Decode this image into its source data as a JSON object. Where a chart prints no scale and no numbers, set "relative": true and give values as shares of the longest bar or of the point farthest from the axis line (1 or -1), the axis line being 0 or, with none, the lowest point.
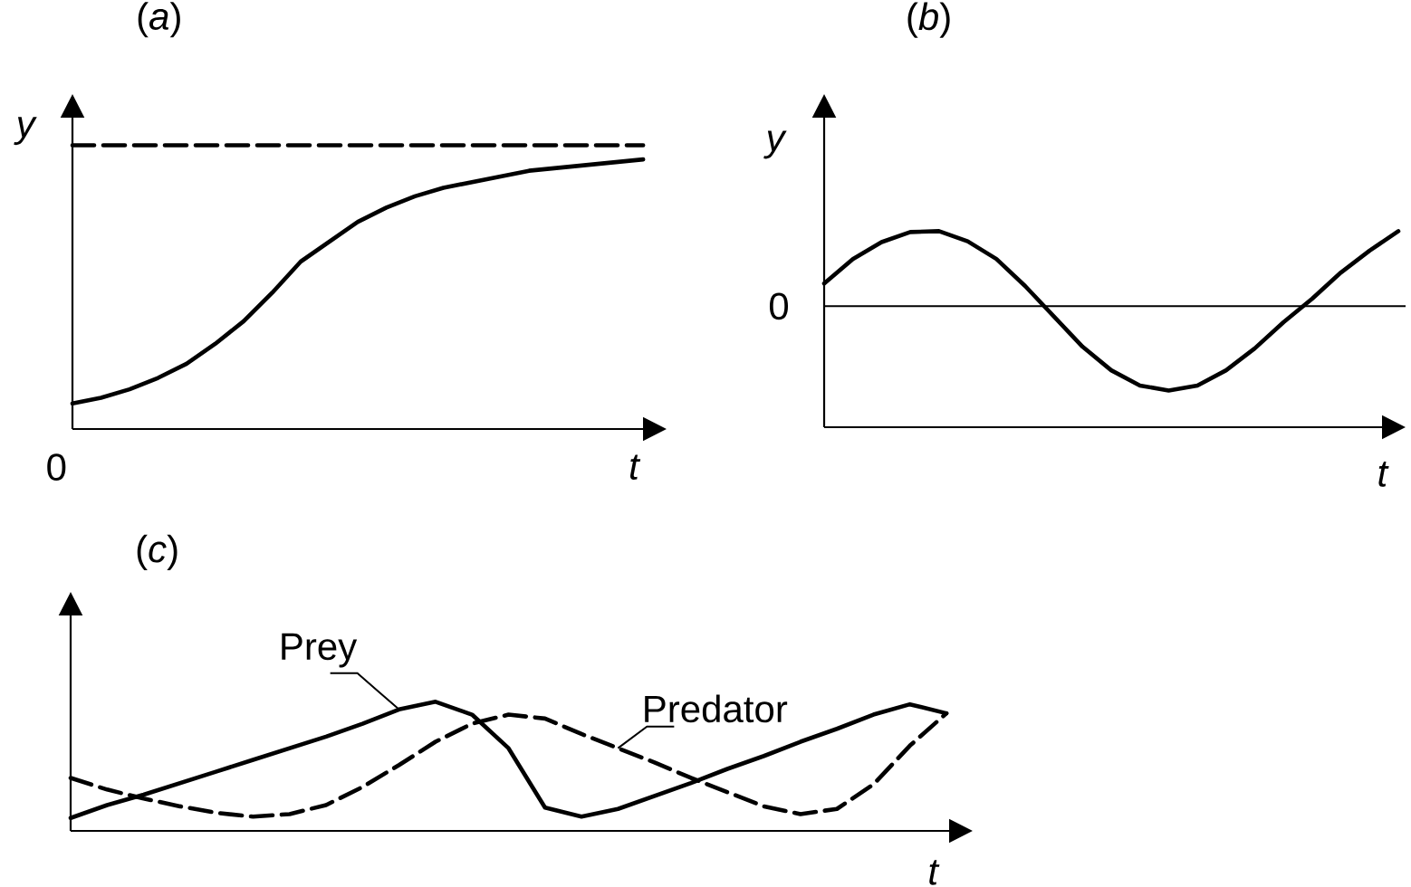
{
  "chart_data": [
    {
      "type": "line",
      "title": "(*a*)",
      "xlabel": "t",
      "ylabel": "y",
      "relative": true,
      "categories": [
        null,
        null,
        null,
        null,
        null,
        null,
        null,
        null,
        null,
        null,
        null,
        null,
        null,
        null,
        null,
        null,
        null,
        null,
        null,
        null,
        null
      ],
      "series": [
        {
          "color": "#000000",
          "line_style": "solid",
          "values": [
            0.09,
            0.11,
            0.14,
            0.18,
            0.23,
            0.3,
            0.38,
            0.48,
            0.59,
            0.66,
            0.73,
            0.78,
            0.82,
            0.85,
            0.87,
            0.89,
            0.91,
            0.92,
            0.93,
            0.94,
            0.95
          ]
        },
        {
          "color": "#000000",
          "line_style": "dashed",
          "values": [
            1,
            1,
            1,
            1,
            1,
            1,
            1,
            1,
            1,
            1,
            1,
            1,
            1,
            1,
            1,
            1,
            1,
            1,
            1,
            1,
            1
          ]
        }
      ],
      "annotations": [
        "0"
      ]
    },
    {
      "type": "line",
      "title": "(*b*)",
      "xlabel": "t",
      "ylabel": "y",
      "relative": true,
      "categories": [
        null,
        null,
        null,
        null,
        null,
        null,
        null,
        null,
        null,
        null,
        null,
        null,
        null,
        null,
        null,
        null,
        null,
        null,
        null,
        null,
        null
      ],
      "series": [
        {
          "color": "#000000",
          "line_style": "solid",
          "values": [
            0.27,
            0.56,
            0.76,
            0.88,
            0.89,
            0.77,
            0.56,
            0.24,
            -0.12,
            -0.48,
            -0.76,
            -0.94,
            -1.0,
            -0.94,
            -0.76,
            -0.5,
            -0.19,
            0.09,
            0.4,
            0.66,
            0.89
          ]
        }
      ],
      "ref_lines": [
        {
          "axis": "y",
          "value": 0,
          "label": "0"
        }
      ]
    },
    {
      "type": "line",
      "title": "(*c*)",
      "xlabel": "t",
      "relative": true,
      "categories": [
        null,
        null,
        null,
        null,
        null,
        null,
        null,
        null,
        null,
        null,
        null,
        null,
        null,
        null,
        null,
        null,
        null,
        null,
        null,
        null,
        null,
        null,
        null,
        null,
        null
      ],
      "series": [
        {
          "name": "Prey",
          "color": "#000000",
          "line_style": "solid",
          "values": [
            0.1,
            0.2,
            0.28,
            0.37,
            0.46,
            0.55,
            0.64,
            0.73,
            0.83,
            0.94,
            1.0,
            0.9,
            0.64,
            0.18,
            0.11,
            0.17,
            0.27,
            0.37,
            0.48,
            0.58,
            0.69,
            0.79,
            0.9,
            0.98,
            0.91
          ]
        },
        {
          "name": "Predator",
          "color": "#000000",
          "line_style": "dashed",
          "values": [
            0.41,
            0.32,
            0.25,
            0.19,
            0.14,
            0.11,
            0.13,
            0.2,
            0.34,
            0.51,
            0.69,
            0.83,
            0.9,
            0.87,
            0.75,
            0.64,
            0.53,
            0.41,
            0.3,
            0.19,
            0.13,
            0.17,
            0.36,
            0.66,
            0.91
          ]
        }
      ]
    }
  ]
}
